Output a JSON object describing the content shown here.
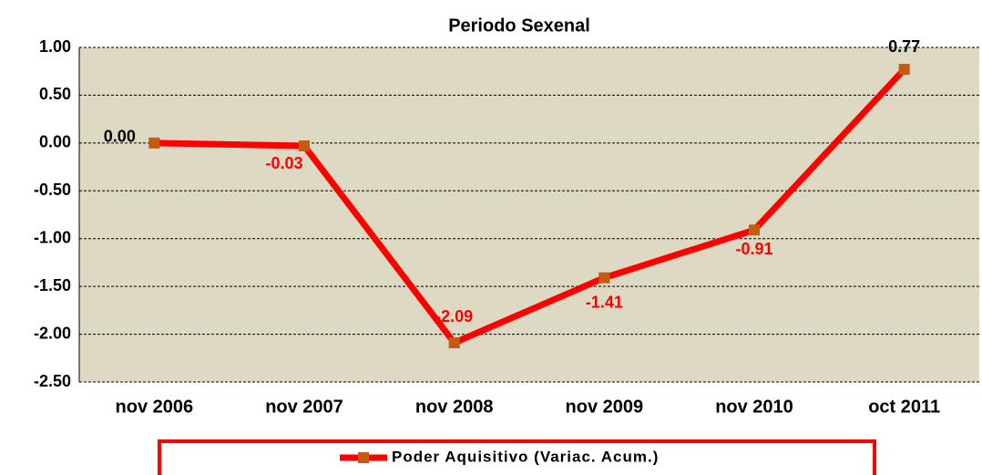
{
  "chart_data": {
    "type": "line",
    "title": "Periodo Sexenal",
    "categories": [
      "nov 2006",
      "nov 2007",
      "nov 2008",
      "nov 2009",
      "nov 2010",
      "oct 2011"
    ],
    "series": [
      {
        "name": "Poder Aquisitivo (Variac. Acum.)",
        "color": "#ff0000",
        "marker_color": "#c55a11",
        "values": [
          0,
          -0.03,
          -2.09,
          -1.41,
          -0.91,
          0.77
        ],
        "value_labels": [
          "0.00",
          "-0.03",
          "-2.09",
          "-1.41",
          "-0.91",
          "0.77"
        ],
        "value_label_colors": [
          "#000000",
          "#ff0000",
          "#ff0000",
          "#ff0000",
          "#ff0000",
          "#000000"
        ]
      }
    ],
    "ylim": [
      -2.5,
      1
    ],
    "yticks": [
      {
        "value": -2.5,
        "label": "-2.50"
      },
      {
        "value": -2,
        "label": "-2.00"
      },
      {
        "value": -1.5,
        "label": "-1.50"
      },
      {
        "value": -1,
        "label": "-1.00"
      },
      {
        "value": -0.5,
        "label": "-0.50"
      },
      {
        "value": 0,
        "label": "0.00"
      },
      {
        "value": 0.5,
        "label": "0.50"
      },
      {
        "value": 1,
        "label": "1.00"
      }
    ],
    "grid": true,
    "plot_background": "#ddd9c3",
    "legend": "bottom"
  }
}
